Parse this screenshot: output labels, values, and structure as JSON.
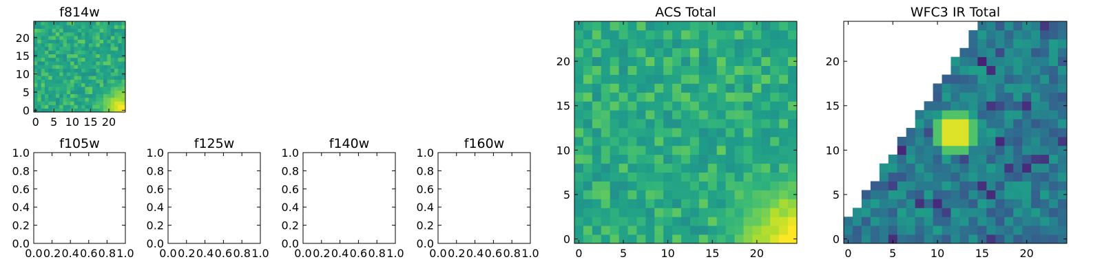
{
  "chart_data": [
    {
      "type": "heatmap",
      "title": "f814w",
      "xlim": [
        -0.5,
        24.5
      ],
      "ylim": [
        -0.5,
        24.5
      ],
      "xticks": [
        "0",
        "5",
        "10",
        "15",
        "20"
      ],
      "yticks": [
        "0",
        "5",
        "10",
        "15",
        "20"
      ],
      "grid": false,
      "colormap": "viridis",
      "z_summary": "25x25 pixel cutout; bright clump at the lower-right corner, scattered dark pixels elsewhere"
    },
    {
      "type": "scatter",
      "title": "f105w",
      "empty": true,
      "xlim": [
        0,
        1
      ],
      "ylim": [
        0,
        1
      ],
      "xticks": [
        "0.0",
        "0.2",
        "0.4",
        "0.6",
        "0.8",
        "1.0"
      ],
      "yticks": [
        "0.0",
        "0.2",
        "0.4",
        "0.6",
        "0.8",
        "1.0"
      ]
    },
    {
      "type": "scatter",
      "title": "f125w",
      "empty": true,
      "xlim": [
        0,
        1
      ],
      "ylim": [
        0,
        1
      ],
      "xticks": [
        "0.0",
        "0.2",
        "0.4",
        "0.6",
        "0.8",
        "1.0"
      ],
      "yticks": [
        "0.0",
        "0.2",
        "0.4",
        "0.6",
        "0.8",
        "1.0"
      ]
    },
    {
      "type": "scatter",
      "title": "f140w",
      "empty": true,
      "xlim": [
        0,
        1
      ],
      "ylim": [
        0,
        1
      ],
      "xticks": [
        "0.0",
        "0.2",
        "0.4",
        "0.6",
        "0.8",
        "1.0"
      ],
      "yticks": [
        "0.0",
        "0.2",
        "0.4",
        "0.6",
        "0.8",
        "1.0"
      ]
    },
    {
      "type": "scatter",
      "title": "f160w",
      "empty": true,
      "xlim": [
        0,
        1
      ],
      "ylim": [
        0,
        1
      ],
      "xticks": [
        "0.0",
        "0.2",
        "0.4",
        "0.6",
        "0.8",
        "1.0"
      ],
      "yticks": [
        "0.0",
        "0.2",
        "0.4",
        "0.6",
        "0.8",
        "1.0"
      ]
    },
    {
      "type": "heatmap",
      "title": "ACS Total",
      "xlim": [
        -0.5,
        24.5
      ],
      "ylim": [
        -0.5,
        24.5
      ],
      "xticks": [
        "0",
        "5",
        "10",
        "15",
        "20"
      ],
      "yticks": [
        "0",
        "5",
        "10",
        "15",
        "20"
      ],
      "grid": false,
      "colormap": "viridis",
      "z_summary": "25x25 pixel cutout; brightest region at lower-right (x 18-24, y 0-5), a few dark pixels scattered"
    },
    {
      "type": "heatmap",
      "title": "WFC3 IR Total",
      "xlim": [
        -0.5,
        24.5
      ],
      "ylim": [
        -0.5,
        24.5
      ],
      "xticks": [
        "0",
        "5",
        "10",
        "15",
        "20"
      ],
      "yticks": [
        "0",
        "5",
        "10",
        "15",
        "20"
      ],
      "grid": false,
      "colormap": "viridis",
      "z_summary": "25x25 pixel cutout; upper-left triangle has no data (white); bright source near x 11-13, y 11-13"
    }
  ],
  "colors": {
    "viridis_low": "#440154",
    "viridis_mid": "#21918c",
    "viridis_high": "#fde725",
    "nodata": "#ffffff"
  }
}
